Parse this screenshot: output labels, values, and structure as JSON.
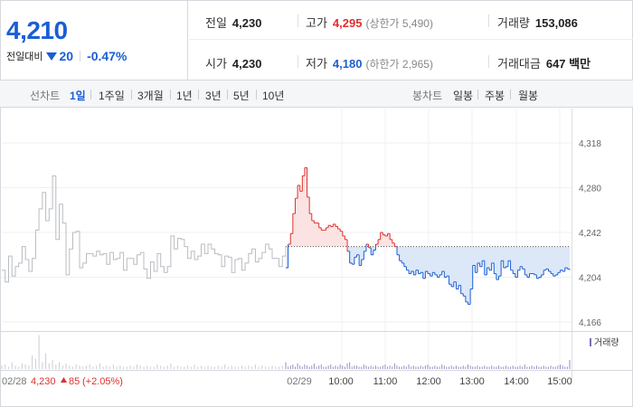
{
  "summary": {
    "current_price": "4,210",
    "change_label": "전일대비",
    "change_value": "20",
    "change_pct": "-0.47%",
    "prev_close": {
      "label": "전일",
      "value": "4,230"
    },
    "high": {
      "label": "고가",
      "value": "4,295",
      "limit_note": "(상한가 5,490)"
    },
    "volume": {
      "label": "거래량",
      "value": "153,086"
    },
    "open": {
      "label": "시가",
      "value": "4,230"
    },
    "low": {
      "label": "저가",
      "value": "4,180",
      "limit_note": "(하한가 2,965)"
    },
    "amount": {
      "label": "거래대금",
      "value": "647 백만"
    }
  },
  "toolbar": {
    "line_chart_label": "선차트",
    "periods": [
      "1일",
      "1주일",
      "3개월",
      "1년",
      "3년",
      "5년",
      "10년"
    ],
    "active_period": "1일",
    "candle_chart_label": "봉차트",
    "candle_periods": [
      "일봉",
      "주봉",
      "월봉"
    ]
  },
  "colors": {
    "up": "#e0302d",
    "down": "#1a5ed6",
    "prev_day_line": "#b9bcc2",
    "up_fill": "#fbe3e3",
    "down_fill": "#dce7f7"
  },
  "chart_data": {
    "type": "line",
    "y_ticks": [
      "4,318",
      "4,280",
      "4,242",
      "4,204",
      "4,166"
    ],
    "ylim": [
      4166,
      4318
    ],
    "base_price": 4230,
    "volume_label": "거래량",
    "prev_day_footer": {
      "date": "02/28",
      "close": "4,230",
      "change": "85",
      "change_pct": "(+2.05%)"
    },
    "x_ticks": [
      "02/29",
      "10:00",
      "11:00",
      "12:00",
      "13:00",
      "14:00",
      "15:00"
    ],
    "today": {
      "x": [
        0,
        3,
        6,
        9,
        12,
        15,
        18,
        21,
        24,
        27,
        30,
        33,
        36,
        39,
        42,
        45,
        48,
        51,
        54,
        57,
        60,
        63,
        66,
        69,
        72,
        75,
        78,
        81,
        84,
        87,
        90,
        93,
        96,
        99,
        102,
        105,
        108,
        111,
        114,
        117,
        120,
        123,
        126,
        129,
        132,
        135,
        138,
        141,
        144,
        147,
        150,
        153,
        156,
        159,
        162,
        165,
        168,
        171,
        174,
        177,
        180,
        183,
        186,
        189,
        192,
        195,
        198,
        201,
        204,
        207,
        210,
        213,
        216,
        219,
        222,
        225,
        228,
        231,
        234,
        237,
        240,
        243,
        246,
        249,
        252,
        255,
        258,
        261,
        264,
        267,
        270,
        273,
        276,
        279,
        282,
        285,
        288,
        291,
        294,
        297,
        300,
        303,
        306,
        309,
        312,
        315,
        318,
        321,
        324,
        327,
        330,
        333,
        336,
        339,
        342,
        345,
        348,
        351,
        354,
        357,
        360
      ],
      "y": [
        4212,
        4232,
        4241,
        4258,
        4271,
        4282,
        4277,
        4290,
        4297,
        4272,
        4258,
        4252,
        4250,
        4250,
        4246,
        4244,
        4244,
        4246,
        4248,
        4247,
        4249,
        4247,
        4245,
        4243,
        4239,
        4236,
        4226,
        4216,
        4215,
        4221,
        4223,
        4214,
        4219,
        4226,
        4232,
        4229,
        4223,
        4227,
        4232,
        4236,
        4242,
        4240,
        4239,
        4241,
        4236,
        4233,
        4230,
        4223,
        4218,
        4216,
        4213,
        4210,
        4207,
        4209,
        4206,
        4210,
        4207,
        4208,
        4203,
        4209,
        4207,
        4205,
        4208,
        4206,
        4204,
        4206,
        4209,
        4204,
        4205,
        4198,
        4196,
        4200,
        4194,
        4197,
        4190,
        4188,
        4183,
        4181,
        4194,
        4214,
        4208,
        4216,
        4213,
        4218,
        4206,
        4212,
        4210,
        4216,
        4207,
        4202,
        4205,
        4218,
        4212,
        4213,
        4218,
        4210,
        4207,
        4204,
        4210,
        4213,
        4211,
        4206,
        4204,
        4207,
        4207,
        4206,
        4203,
        4204,
        4206,
        4210,
        4211,
        4209,
        4207,
        4205,
        4206,
        4208,
        4210,
        4209,
        4212,
        4211,
        4210
      ]
    },
    "previous_day": {
      "y": [
        4210,
        4200,
        4222,
        4205,
        4213,
        4216,
        4230,
        4219,
        4209,
        4220,
        4244,
        4262,
        4276,
        4252,
        4262,
        4290,
        4236,
        4266,
        4250,
        4206,
        4228,
        4242,
        4243,
        4212,
        4216,
        4224,
        4224,
        4222,
        4226,
        4223,
        4224,
        4215,
        4225,
        4219,
        4220,
        4225,
        4210,
        4220,
        4220,
        4215,
        4223,
        4225,
        4211,
        4203,
        4217,
        4209,
        4224,
        4213,
        4208,
        4213,
        4239,
        4228,
        4237,
        4236,
        4230,
        4220,
        4226,
        4219,
        4222,
        4232,
        4224,
        4232,
        4228,
        4224,
        4223,
        4213,
        4222,
        4221,
        4208,
        4219,
        4220,
        4210,
        4216,
        4224,
        4228,
        4217,
        4220,
        4225,
        4232,
        4228,
        4220,
        4220,
        4213,
        4222,
        4230
      ]
    },
    "volume_today": [
      6,
      2,
      3,
      4,
      2,
      5,
      3,
      2,
      4,
      3,
      2,
      3,
      5,
      2,
      3,
      4,
      2,
      2,
      3,
      4,
      2,
      3,
      2,
      4,
      3,
      2,
      5,
      6,
      2,
      3,
      3,
      2,
      2,
      4,
      3,
      2,
      3,
      2,
      3,
      2,
      2,
      3,
      4,
      2,
      3,
      2,
      5,
      3,
      2,
      2,
      3,
      2,
      4,
      2,
      3,
      2,
      2,
      3,
      2,
      3,
      4,
      2,
      2,
      3,
      2,
      2,
      4,
      3,
      2,
      2,
      3,
      2,
      3,
      2,
      2,
      3,
      2,
      4,
      3,
      2,
      2,
      3,
      2,
      2,
      3,
      2,
      2,
      3,
      2,
      2,
      3,
      2,
      2,
      3,
      2,
      2,
      3,
      2,
      2,
      3,
      2,
      4,
      2,
      2,
      3,
      2,
      3,
      2,
      2,
      3,
      2,
      2,
      3,
      2,
      2,
      3,
      4,
      3,
      2,
      2,
      8
    ],
    "volume_prev": [
      3,
      4,
      2,
      6,
      3,
      2,
      5,
      4,
      3,
      12,
      9,
      30,
      6,
      14,
      5,
      8,
      4,
      6,
      3,
      5,
      3,
      2,
      4,
      3,
      2,
      3,
      4,
      2,
      3,
      5,
      2,
      3,
      2,
      4,
      2,
      3,
      2,
      2,
      3,
      2,
      4,
      3,
      2,
      3,
      2,
      2,
      4,
      3,
      2,
      3,
      5,
      2,
      3,
      2,
      2,
      3,
      2,
      4,
      2,
      3,
      2,
      3,
      2,
      2,
      3,
      2,
      4,
      2,
      3,
      2,
      2,
      3,
      2,
      3,
      2,
      4,
      2,
      3,
      2,
      2,
      3,
      2,
      2,
      3,
      2
    ]
  }
}
